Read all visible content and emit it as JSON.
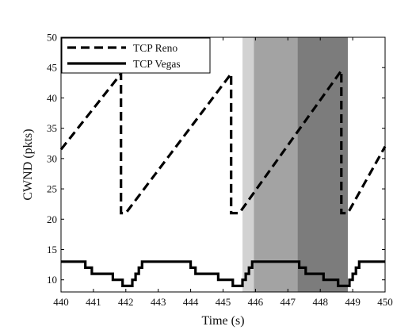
{
  "chart_data": {
    "type": "line",
    "xlabel": "Time (s)",
    "ylabel": "CWND (pkts)",
    "xlim": [
      440,
      450
    ],
    "ylim": [
      8,
      50
    ],
    "xticks": [
      440,
      441,
      442,
      443,
      444,
      445,
      446,
      447,
      448,
      449,
      450
    ],
    "yticks": [
      10,
      15,
      20,
      25,
      30,
      35,
      40,
      45,
      50
    ],
    "grid": false,
    "legend_position": "top-left",
    "shaded_regions": [
      {
        "x0": 445.6,
        "x1": 445.95,
        "color": "#d2d2d2"
      },
      {
        "x0": 445.95,
        "x1": 447.3,
        "color": "#a3a3a3"
      },
      {
        "x0": 447.3,
        "x1": 448.85,
        "color": "#7c7c7c"
      }
    ],
    "series": [
      {
        "name": "TCP Reno",
        "style": "dashed",
        "color": "#000000",
        "points": [
          [
            440,
            31.5
          ],
          [
            441.85,
            44
          ],
          [
            441.85,
            21
          ],
          [
            442.0,
            21
          ],
          [
            445.25,
            44
          ],
          [
            445.25,
            21
          ],
          [
            445.5,
            21
          ],
          [
            448.65,
            44.5
          ],
          [
            448.65,
            21
          ],
          [
            448.85,
            21
          ],
          [
            450,
            32
          ]
        ]
      },
      {
        "name": "TCP Vegas",
        "style": "solid",
        "color": "#000000",
        "points": [
          [
            440,
            13
          ],
          [
            440.75,
            13
          ],
          [
            440.75,
            12
          ],
          [
            440.95,
            12
          ],
          [
            440.95,
            11
          ],
          [
            441.6,
            11
          ],
          [
            441.6,
            10
          ],
          [
            441.9,
            10
          ],
          [
            441.9,
            9
          ],
          [
            442.2,
            9
          ],
          [
            442.2,
            10
          ],
          [
            442.3,
            10
          ],
          [
            442.3,
            11
          ],
          [
            442.4,
            11
          ],
          [
            442.4,
            12
          ],
          [
            442.5,
            12
          ],
          [
            442.5,
            13
          ],
          [
            444.0,
            13
          ],
          [
            444.0,
            12
          ],
          [
            444.15,
            12
          ],
          [
            444.15,
            11
          ],
          [
            444.85,
            11
          ],
          [
            444.85,
            10
          ],
          [
            445.3,
            10
          ],
          [
            445.3,
            9
          ],
          [
            445.6,
            9
          ],
          [
            445.6,
            10
          ],
          [
            445.7,
            10
          ],
          [
            445.7,
            11
          ],
          [
            445.8,
            11
          ],
          [
            445.8,
            12
          ],
          [
            445.9,
            12
          ],
          [
            445.9,
            13
          ],
          [
            447.35,
            13
          ],
          [
            447.35,
            12
          ],
          [
            447.55,
            12
          ],
          [
            447.55,
            11
          ],
          [
            448.1,
            11
          ],
          [
            448.1,
            10
          ],
          [
            448.55,
            10
          ],
          [
            448.55,
            9
          ],
          [
            448.9,
            9
          ],
          [
            448.9,
            10
          ],
          [
            449.0,
            10
          ],
          [
            449.0,
            11
          ],
          [
            449.1,
            11
          ],
          [
            449.1,
            12
          ],
          [
            449.2,
            12
          ],
          [
            449.2,
            13
          ],
          [
            450,
            13
          ]
        ]
      }
    ]
  }
}
